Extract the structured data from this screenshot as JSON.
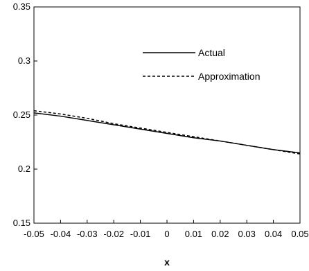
{
  "chart_data": {
    "type": "line",
    "xlabel": "x",
    "ylabel": "",
    "xlim": [
      -0.05,
      0.05
    ],
    "ylim": [
      0.15,
      0.35
    ],
    "xticks": [
      -0.05,
      -0.04,
      -0.03,
      -0.02,
      -0.01,
      0,
      0.01,
      0.02,
      0.03,
      0.04,
      0.05
    ],
    "xtick_labels": [
      "-0.05",
      "-0.04",
      "-0.03",
      "-0.02",
      "-0.01",
      "0",
      "0.01",
      "0.02",
      "0.03",
      "0.04",
      "0.05"
    ],
    "yticks": [
      0.15,
      0.2,
      0.25,
      0.3,
      0.35
    ],
    "ytick_labels": [
      "0.15",
      "0.2",
      "0.25",
      "0.3",
      "0.35"
    ],
    "grid": false,
    "legend": "top-right",
    "x": [
      -0.05,
      -0.04,
      -0.03,
      -0.02,
      -0.01,
      0,
      0.01,
      0.02,
      0.03,
      0.04,
      0.05
    ],
    "series": [
      {
        "name": "Actual",
        "style": "solid",
        "color": "#000000",
        "values": [
          0.252,
          0.249,
          0.245,
          0.241,
          0.237,
          0.233,
          0.229,
          0.226,
          0.222,
          0.218,
          0.215
        ]
      },
      {
        "name": "Approximation",
        "style": "dashed",
        "color": "#000000",
        "values": [
          0.254,
          0.251,
          0.247,
          0.242,
          0.238,
          0.234,
          0.23,
          0.226,
          0.222,
          0.218,
          0.214
        ]
      }
    ]
  }
}
